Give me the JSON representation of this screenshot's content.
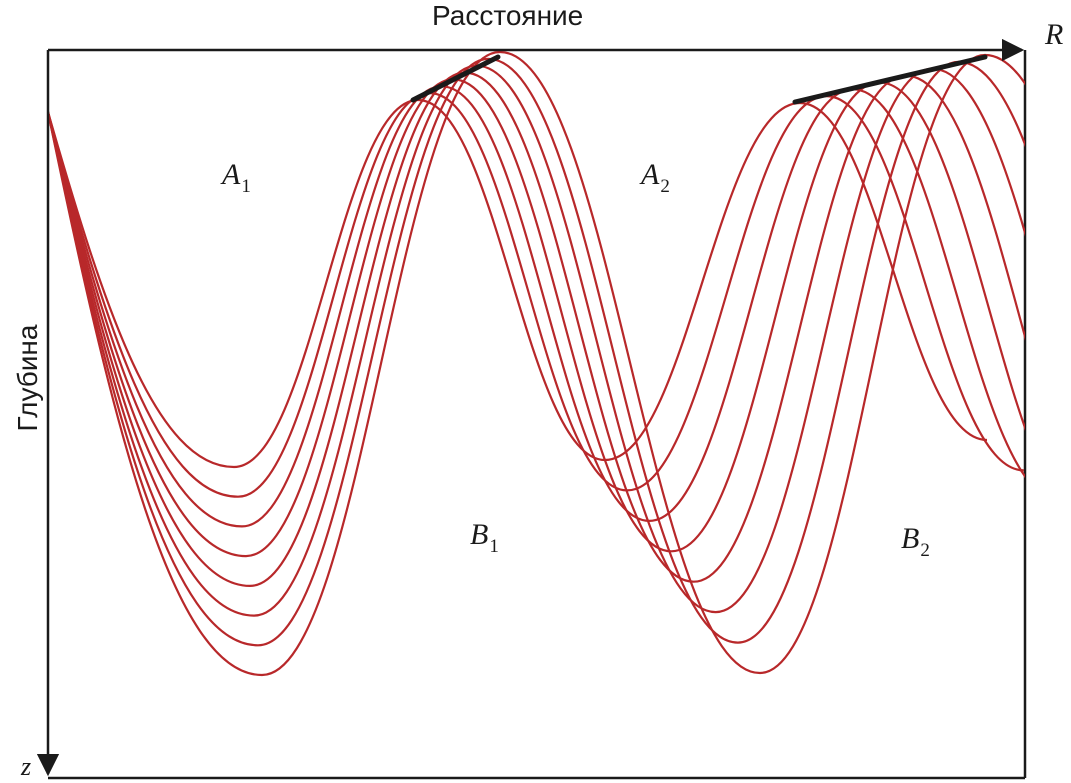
{
  "labels": {
    "distance_axis_title": "Расстояние",
    "depth_axis_title": "Глубина",
    "range_axis_letter": "R",
    "depth_axis_letter": "z"
  },
  "zones": [
    {
      "id": "a1",
      "letter": "A",
      "sub": "1"
    },
    {
      "id": "a2",
      "letter": "A",
      "sub": "2"
    },
    {
      "id": "b1",
      "letter": "B",
      "sub": "1"
    },
    {
      "id": "b2",
      "letter": "B",
      "sub": "2"
    }
  ],
  "colors": {
    "ray": "#b8282a",
    "frame": "#1a1a1a",
    "background": "#ffffff"
  },
  "ray_fan": {
    "ray_count": 8,
    "description_icon": "ray-trajectories"
  }
}
